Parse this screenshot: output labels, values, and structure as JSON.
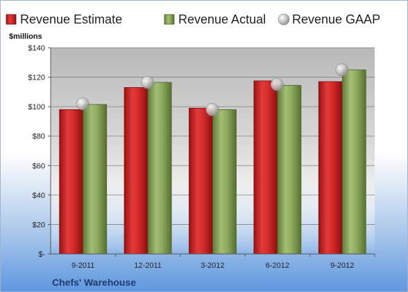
{
  "chart_data": {
    "type": "bar",
    "title": "",
    "ylabel": "$millions",
    "xlabel": "",
    "categories": [
      "9-2011",
      "12-2011",
      "3-2012",
      "6-2012",
      "9-2012"
    ],
    "series": [
      {
        "name": "Revenue Estimate",
        "type": "bar",
        "color": "#d42a2a",
        "values": [
          98,
          113,
          99,
          117.5,
          117
        ]
      },
      {
        "name": "Revenue Actual",
        "type": "bar",
        "color": "#8aa85c",
        "values": [
          101.5,
          116.5,
          98,
          114.5,
          125
        ]
      },
      {
        "name": "Revenue GAAP",
        "type": "scatter",
        "color": "#b8b8b8",
        "values": [
          102,
          116.5,
          98,
          115,
          125
        ]
      }
    ],
    "ylim": [
      0,
      140
    ],
    "yticks": [
      0,
      20,
      40,
      60,
      80,
      100,
      120,
      140
    ],
    "ytick_labels": [
      "$-",
      "$20",
      "$40",
      "$60",
      "$80",
      "$100",
      "$120",
      "$140"
    ],
    "grid": true,
    "legend_position": "top"
  },
  "legend": {
    "estimate": "Revenue Estimate",
    "actual": "Revenue Actual",
    "gaap": "Revenue GAAP"
  },
  "company_name": "Chefs' Warehouse"
}
